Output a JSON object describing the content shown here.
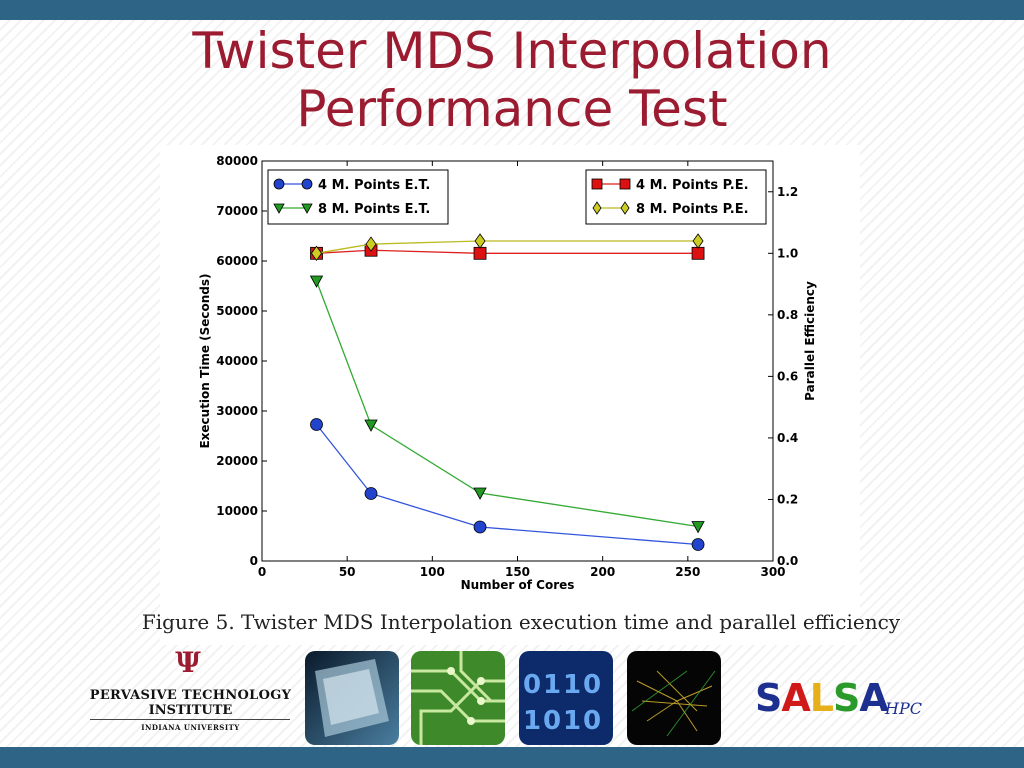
{
  "slide": {
    "title_line1": "Twister MDS Interpolation",
    "title_line2": "Performance Test",
    "caption": "Figure 5. Twister MDS Interpolation execution time and parallel efficiency"
  },
  "footer": {
    "iu_mark": "Ψ",
    "institute_line1": "PERVASIVE TECHNOLOGY",
    "institute_line2": "INSTITUTE",
    "institute_line3": "INDIANA UNIVERSITY",
    "salsa_letters": [
      "S",
      "A",
      "L",
      "S",
      "A"
    ],
    "salsa_suffix": "HPC"
  },
  "colors": {
    "bar": "#2e6587",
    "title": "#9b1c31",
    "series_4m_et": "#2244cc",
    "series_8m_et": "#229922",
    "series_4m_pe": "#dd1111",
    "series_8m_pe": "#cccc22"
  },
  "chart_data": {
    "type": "line",
    "xlabel": "Number of Cores",
    "ylabel": "Execution Time (Seconds)",
    "y2label": "Parallel Efficiency",
    "xlim": [
      0,
      300
    ],
    "ylim": [
      0,
      80000
    ],
    "y2lim": [
      0.0,
      1.3
    ],
    "xticks": [
      0,
      50,
      100,
      150,
      200,
      250,
      300
    ],
    "yticks": [
      0,
      10000,
      20000,
      30000,
      40000,
      50000,
      60000,
      70000,
      80000
    ],
    "y2ticks": [
      0.0,
      0.2,
      0.4,
      0.6,
      0.8,
      1.0,
      1.2
    ],
    "x": [
      32,
      64,
      128,
      256
    ],
    "series": [
      {
        "name": "4 M. Points E.T.",
        "axis": "left",
        "values": [
          27300,
          13500,
          6800,
          3300
        ],
        "marker": "circle",
        "color": "#2244cc",
        "line": "#3355dd"
      },
      {
        "name": "8 M. Points E.T.",
        "axis": "left",
        "values": [
          56000,
          27200,
          13600,
          6900
        ],
        "marker": "triangle-down",
        "color": "#229922",
        "line": "#33aa33"
      },
      {
        "name": "4 M. Points P.E.",
        "axis": "right",
        "values": [
          1.0,
          1.01,
          1.0,
          1.0
        ],
        "marker": "square",
        "color": "#dd1111",
        "line": "#dd2222"
      },
      {
        "name": "8 M. Points P.E.",
        "axis": "right",
        "values": [
          1.0,
          1.03,
          1.04,
          1.04
        ],
        "marker": "diamond",
        "color": "#cccc22",
        "line": "#bbbb22"
      }
    ],
    "legend_left": "top-left",
    "legend_right": "top-right",
    "grid": false
  }
}
